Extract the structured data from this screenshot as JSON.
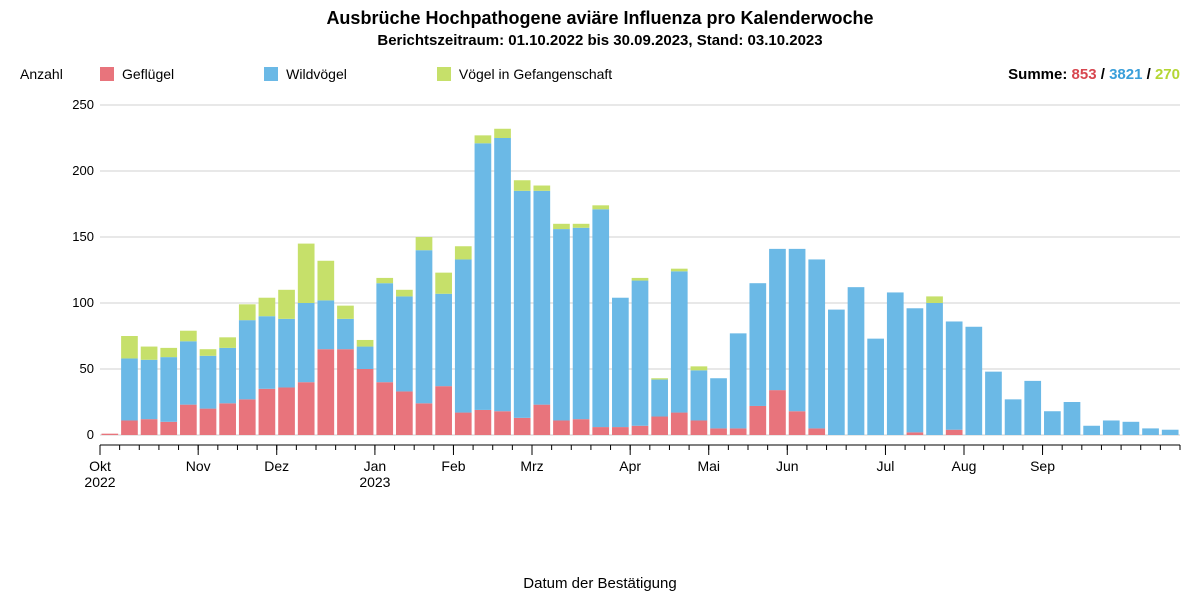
{
  "title": "Ausbrüche Hochpathogene aviäre Influenza pro Kalenderwoche",
  "subtitle": "Berichtszeitraum: 01.10.2022 bis 30.09.2023, Stand: 03.10.2023",
  "y_axis_title": "Anzahl",
  "x_axis_title": "Datum der Bestätigung",
  "legend": {
    "series1": "Geflügel",
    "series2": "Wildvögel",
    "series3": "Vögel in Gefangenschaft"
  },
  "summary": {
    "label": "Summe:",
    "s1": "853",
    "s2": "3821",
    "s3": "270",
    "sep": " / "
  },
  "colors": {
    "series1": "#e8747c",
    "series2": "#6bb9e6",
    "series3": "#c6e06a",
    "background": "#ffffff",
    "text": "#000000",
    "grid": "#d0d0d0",
    "axis": "#000000",
    "summary_s1": "#d8464f",
    "summary_s2": "#3a9fda",
    "summary_s3": "#b4d634"
  },
  "chart": {
    "type": "stacked-bar",
    "y": {
      "min": 0,
      "max": 250,
      "step": 50
    },
    "bar_gap_ratio": 0.15,
    "month_labels": [
      {
        "index": 0,
        "line1": "Okt",
        "line2": "2022"
      },
      {
        "index": 5,
        "line1": "Nov",
        "line2": ""
      },
      {
        "index": 9,
        "line1": "Dez",
        "line2": ""
      },
      {
        "index": 14,
        "line1": "Jan",
        "line2": "2023"
      },
      {
        "index": 18,
        "line1": "Feb",
        "line2": ""
      },
      {
        "index": 22,
        "line1": "Mrz",
        "line2": ""
      },
      {
        "index": 27,
        "line1": "Apr",
        "line2": ""
      },
      {
        "index": 31,
        "line1": "Mai",
        "line2": ""
      },
      {
        "index": 35,
        "line1": "Jun",
        "line2": ""
      },
      {
        "index": 40,
        "line1": "Jul",
        "line2": ""
      },
      {
        "index": 44,
        "line1": "Aug",
        "line2": ""
      },
      {
        "index": 48,
        "line1": "Sep",
        "line2": ""
      }
    ],
    "weeks": [
      {
        "s1": 1,
        "s2": 0,
        "s3": 0
      },
      {
        "s1": 11,
        "s2": 47,
        "s3": 17
      },
      {
        "s1": 12,
        "s2": 45,
        "s3": 10
      },
      {
        "s1": 10,
        "s2": 49,
        "s3": 7
      },
      {
        "s1": 23,
        "s2": 48,
        "s3": 8
      },
      {
        "s1": 20,
        "s2": 40,
        "s3": 5
      },
      {
        "s1": 24,
        "s2": 42,
        "s3": 8
      },
      {
        "s1": 27,
        "s2": 60,
        "s3": 12
      },
      {
        "s1": 35,
        "s2": 55,
        "s3": 14
      },
      {
        "s1": 36,
        "s2": 52,
        "s3": 22
      },
      {
        "s1": 40,
        "s2": 60,
        "s3": 45
      },
      {
        "s1": 65,
        "s2": 37,
        "s3": 30
      },
      {
        "s1": 65,
        "s2": 23,
        "s3": 10
      },
      {
        "s1": 50,
        "s2": 17,
        "s3": 5
      },
      {
        "s1": 40,
        "s2": 75,
        "s3": 4
      },
      {
        "s1": 33,
        "s2": 72,
        "s3": 5
      },
      {
        "s1": 24,
        "s2": 116,
        "s3": 10
      },
      {
        "s1": 37,
        "s2": 70,
        "s3": 16
      },
      {
        "s1": 17,
        "s2": 116,
        "s3": 10
      },
      {
        "s1": 19,
        "s2": 202,
        "s3": 6
      },
      {
        "s1": 18,
        "s2": 207,
        "s3": 7
      },
      {
        "s1": 13,
        "s2": 172,
        "s3": 8
      },
      {
        "s1": 23,
        "s2": 162,
        "s3": 4
      },
      {
        "s1": 11,
        "s2": 145,
        "s3": 4
      },
      {
        "s1": 12,
        "s2": 145,
        "s3": 3
      },
      {
        "s1": 6,
        "s2": 165,
        "s3": 3
      },
      {
        "s1": 6,
        "s2": 98,
        "s3": 0
      },
      {
        "s1": 7,
        "s2": 110,
        "s3": 2
      },
      {
        "s1": 14,
        "s2": 28,
        "s3": 1
      },
      {
        "s1": 17,
        "s2": 107,
        "s3": 2
      },
      {
        "s1": 11,
        "s2": 38,
        "s3": 3
      },
      {
        "s1": 5,
        "s2": 38,
        "s3": 0
      },
      {
        "s1": 5,
        "s2": 72,
        "s3": 0
      },
      {
        "s1": 22,
        "s2": 93,
        "s3": 0
      },
      {
        "s1": 34,
        "s2": 107,
        "s3": 0
      },
      {
        "s1": 18,
        "s2": 123,
        "s3": 0
      },
      {
        "s1": 5,
        "s2": 128,
        "s3": 0
      },
      {
        "s1": 0,
        "s2": 95,
        "s3": 0
      },
      {
        "s1": 0,
        "s2": 112,
        "s3": 0
      },
      {
        "s1": 0,
        "s2": 73,
        "s3": 0
      },
      {
        "s1": 0,
        "s2": 108,
        "s3": 0
      },
      {
        "s1": 2,
        "s2": 94,
        "s3": 0
      },
      {
        "s1": 0,
        "s2": 100,
        "s3": 5
      },
      {
        "s1": 4,
        "s2": 82,
        "s3": 0
      },
      {
        "s1": 0,
        "s2": 82,
        "s3": 0
      },
      {
        "s1": 0,
        "s2": 48,
        "s3": 0
      },
      {
        "s1": 0,
        "s2": 27,
        "s3": 0
      },
      {
        "s1": 0,
        "s2": 41,
        "s3": 0
      },
      {
        "s1": 0,
        "s2": 18,
        "s3": 0
      },
      {
        "s1": 0,
        "s2": 25,
        "s3": 0
      },
      {
        "s1": 0,
        "s2": 7,
        "s3": 0
      },
      {
        "s1": 0,
        "s2": 11,
        "s3": 0
      },
      {
        "s1": 0,
        "s2": 10,
        "s3": 0
      },
      {
        "s1": 0,
        "s2": 5,
        "s3": 0
      },
      {
        "s1": 0,
        "s2": 4,
        "s3": 0
      }
    ]
  }
}
